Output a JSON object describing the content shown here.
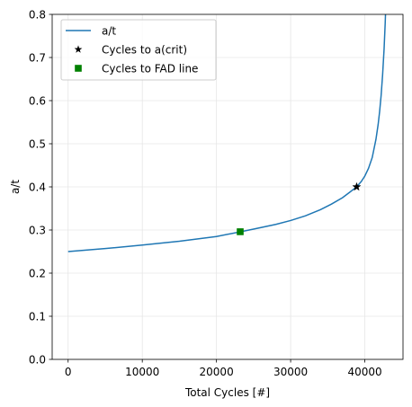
{
  "chart_data": {
    "type": "line",
    "xlabel": "Total Cycles [#]",
    "ylabel": "a/t",
    "xlim": [
      -2150,
      45150
    ],
    "ylim": [
      0.0,
      0.8
    ],
    "xticks": [
      0,
      10000,
      20000,
      30000,
      40000
    ],
    "yticks": [
      0.0,
      0.1,
      0.2,
      0.3,
      0.4,
      0.5,
      0.6,
      0.7,
      0.8
    ],
    "xtick_labels": [
      "0",
      "10000",
      "20000",
      "30000",
      "40000"
    ],
    "ytick_labels": [
      "0.0",
      "0.1",
      "0.2",
      "0.3",
      "0.4",
      "0.5",
      "0.6",
      "0.7",
      "0.8"
    ],
    "grid": true,
    "legend_position": "top-left",
    "series": [
      {
        "name": "a/t",
        "kind": "line",
        "color": "#1f77b4",
        "x": [
          0,
          5000,
          10000,
          15000,
          20000,
          23000,
          25000,
          28000,
          30000,
          32000,
          34000,
          35500,
          37000,
          38000,
          38900,
          39500,
          40000,
          40500,
          41000,
          41500,
          41800,
          42000,
          42200,
          42400,
          42600,
          42750,
          42850,
          42900
        ],
        "y": [
          0.25,
          0.257,
          0.265,
          0.274,
          0.285,
          0.295,
          0.302,
          0.313,
          0.322,
          0.333,
          0.347,
          0.36,
          0.375,
          0.388,
          0.4,
          0.412,
          0.425,
          0.443,
          0.468,
          0.51,
          0.545,
          0.575,
          0.612,
          0.66,
          0.72,
          0.78,
          0.83,
          0.87
        ]
      },
      {
        "name": "Cycles to a(crit)",
        "kind": "marker",
        "marker": "star",
        "color": "#000000",
        "x": [
          38900
        ],
        "y": [
          0.4
        ]
      },
      {
        "name": "Cycles to FAD line",
        "kind": "marker",
        "marker": "square",
        "color": "#008000",
        "x": [
          23200
        ],
        "y": [
          0.296
        ]
      }
    ]
  }
}
